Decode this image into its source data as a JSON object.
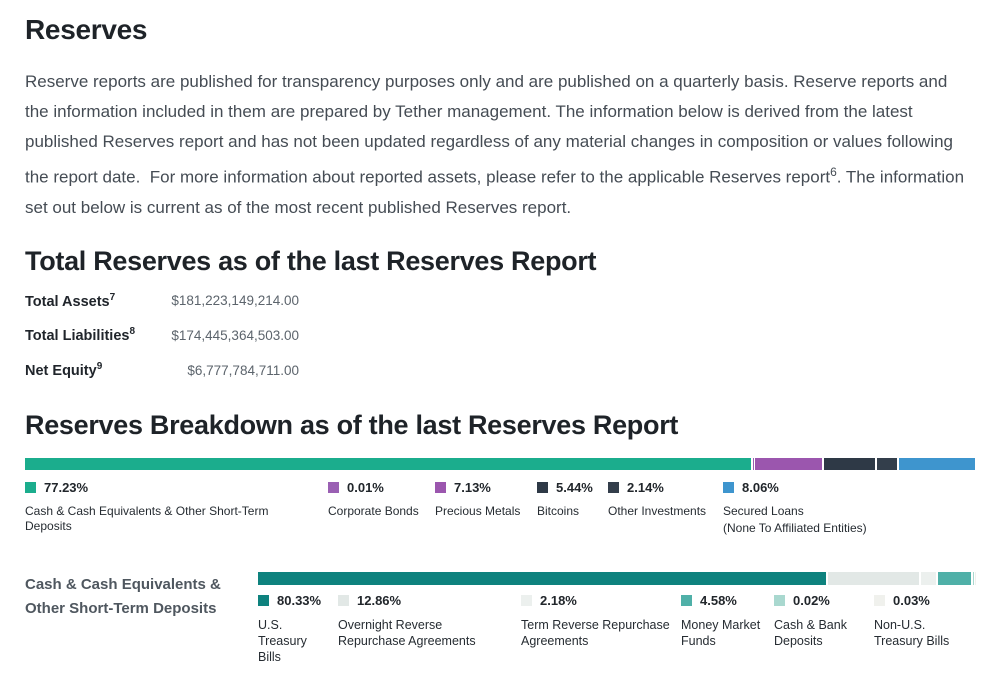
{
  "page": {
    "title": "Reserves",
    "intro": {
      "text_before_sup": "Reserve reports are published for transparency purposes only and are published on a quarterly basis. Reserve reports and the information included in them are prepared by Tether management. The information below is derived from the latest published Reserves report and has not been updated regardless of any material changes in composition or values following the report date.  For more information about reported assets, please refer to the applicable Reserves report",
      "footnote": "6",
      "text_after_sup": ". The information set out below is current as of the most recent published Reserves report."
    }
  },
  "total_reserves": {
    "heading": "Total Reserves as of the last Reserves Report",
    "rows": [
      {
        "label": "Total Assets",
        "footnote": "7",
        "value": "$181,223,149,214.00"
      },
      {
        "label": "Total Liabilities",
        "footnote": "8",
        "value": "$174,445,364,503.00"
      },
      {
        "label": "Net Equity",
        "footnote": "9",
        "value": "$6,777,784,711.00"
      }
    ]
  },
  "breakdown": {
    "heading": "Reserves Breakdown as of the last Reserves Report",
    "sub_section_label": "Cash & Cash Equivalents & Other Short-Term Deposits"
  },
  "chart_data": [
    {
      "type": "bar",
      "variant": "horizontal-stacked",
      "title": "Reserves Breakdown as of the last Reserves Report",
      "unit": "percent",
      "xlim": [
        0,
        100
      ],
      "legend_position": "bottom",
      "categories": [
        "Cash & Cash Equivalents & Other Short-Term Deposits",
        "Corporate Bonds",
        "Precious Metals",
        "Bitcoins",
        "Other Investments",
        "Secured Loans (None To Affiliated Entities)"
      ],
      "values": [
        77.23,
        0.01,
        7.13,
        5.44,
        2.14,
        8.06
      ],
      "items": [
        {
          "pct": "77.23%",
          "value": 77.23,
          "label": "Cash & Cash Equivalents & Other Short-Term Deposits",
          "color": "#1bad8d"
        },
        {
          "pct": "0.01%",
          "value": 0.01,
          "label": "Corporate Bonds",
          "color": "#9a60b3"
        },
        {
          "pct": "7.13%",
          "value": 7.13,
          "label": "Precious Metals",
          "color": "#9b56ae"
        },
        {
          "pct": "5.44%",
          "value": 5.44,
          "label": "Bitcoins",
          "color": "#2e3946"
        },
        {
          "pct": "2.14%",
          "value": 2.14,
          "label": "Other Investments",
          "color": "#333e4b"
        },
        {
          "pct": "8.06%",
          "value": 8.06,
          "label": "Secured Loans",
          "sublabel": "(None To Affiliated Entities)",
          "color": "#3e95ce"
        }
      ]
    },
    {
      "type": "bar",
      "variant": "horizontal-stacked",
      "title": "Cash & Cash Equivalents & Other Short-Term Deposits",
      "unit": "percent",
      "xlim": [
        0,
        100
      ],
      "legend_position": "bottom",
      "categories": [
        "U.S. Treasury Bills",
        "Overnight Reverse Repurchase Agreements",
        "Term Reverse Repurchase Agreements",
        "Money Market Funds",
        "Cash & Bank Deposits",
        "Non-U.S. Treasury Bills"
      ],
      "values": [
        80.33,
        12.86,
        2.18,
        4.58,
        0.02,
        0.03
      ],
      "items": [
        {
          "pct": "80.33%",
          "value": 80.33,
          "label": "U.S. Treasury Bills",
          "color": "#0e827e"
        },
        {
          "pct": "12.86%",
          "value": 12.86,
          "label": "Overnight Reverse Repurchase Agreements",
          "color": "#e2e8e6"
        },
        {
          "pct": "2.18%",
          "value": 2.18,
          "label": "Term Reverse Repurchase Agreements",
          "color": "#ecf0ee"
        },
        {
          "pct": "4.58%",
          "value": 4.58,
          "label": "Money Market Funds",
          "color": "#4fb0a8"
        },
        {
          "pct": "0.02%",
          "value": 0.02,
          "label": "Cash & Bank Deposits",
          "color": "#a9d8cf"
        },
        {
          "pct": "0.03%",
          "value": 0.03,
          "label": "Non-U.S. Treasury Bills",
          "color": "#f0f1ed"
        }
      ]
    }
  ]
}
